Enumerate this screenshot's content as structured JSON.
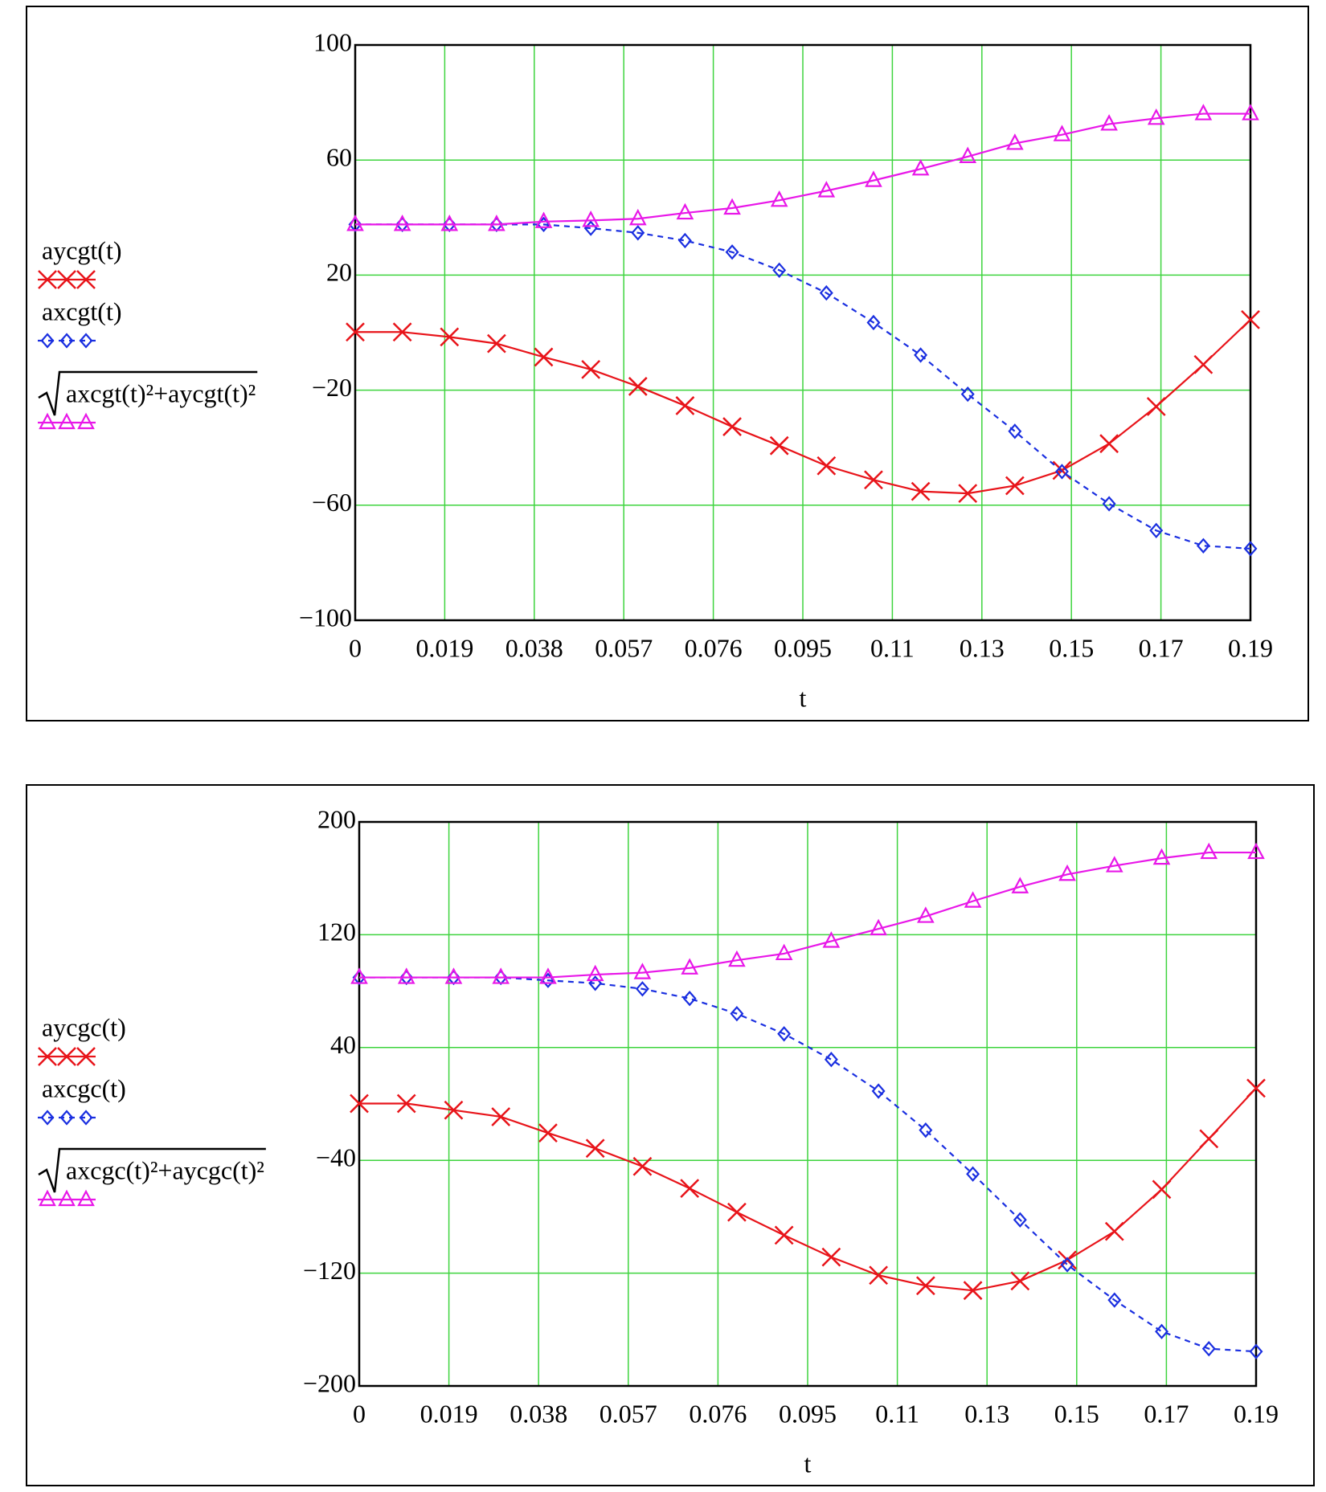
{
  "chart_data": [
    {
      "type": "line",
      "xlabel": "t",
      "x": [
        0,
        0.01,
        0.02,
        0.03,
        0.04,
        0.05,
        0.06,
        0.07,
        0.08,
        0.09,
        0.1,
        0.11,
        0.12,
        0.13,
        0.14,
        0.15,
        0.16,
        0.17,
        0.18,
        0.19
      ],
      "xlim": [
        0,
        0.19
      ],
      "xticks": [
        0,
        0.019,
        0.038,
        0.057,
        0.076,
        0.095,
        {
          "value": 0.114,
          "label": "0.11"
        },
        {
          "value": 0.133,
          "label": "0.13"
        },
        {
          "value": 0.152,
          "label": "0.15"
        },
        {
          "value": 0.171,
          "label": "0.17"
        },
        0.19
      ],
      "ylim": [
        -100,
        100
      ],
      "yticks": [
        {
          "value": -100,
          "label": "−100"
        },
        {
          "value": -60,
          "label": "−60"
        },
        {
          "value": -20,
          "label": "−20"
        },
        20,
        60,
        100
      ],
      "grid": true,
      "series": [
        {
          "name": "aycgt(t)",
          "color": "#e8141a",
          "marker": "x",
          "dash": "solid",
          "values": [
            0.2,
            0.2,
            -1.5,
            -3.8,
            -8.5,
            -12.8,
            -18.7,
            -25.4,
            -32.7,
            -39.3,
            -46.3,
            -51.2,
            -55.2,
            -55.9,
            -53.2,
            -47.9,
            -38.6,
            -25.7,
            -11.1,
            4.5
          ]
        },
        {
          "name": "axcgt(t)",
          "color": "#1a2fe0",
          "marker": "diamond",
          "dash": "dashed",
          "values": [
            37.6,
            37.6,
            37.6,
            37.6,
            37.6,
            36.3,
            34.7,
            32,
            28,
            21.7,
            13.8,
            3.5,
            -7.8,
            -21.4,
            -34.3,
            -48.3,
            -59.5,
            -68.8,
            -74.1,
            -75.1
          ]
        },
        {
          "name": "axcgt(t)²+aycgt(t)²",
          "color": "#e817e8",
          "marker": "triangle",
          "dash": "solid",
          "radical": true,
          "values": [
            37.6,
            37.6,
            37.6,
            37.6,
            38.6,
            39,
            39.6,
            41.6,
            43.3,
            46,
            49.3,
            52.9,
            56.9,
            61.2,
            65.8,
            68.8,
            72.5,
            74.5,
            76.1,
            76.1
          ]
        }
      ]
    },
    {
      "type": "line",
      "xlabel": "t",
      "x": [
        0,
        0.01,
        0.02,
        0.03,
        0.04,
        0.05,
        0.06,
        0.07,
        0.08,
        0.09,
        0.1,
        0.11,
        0.12,
        0.13,
        0.14,
        0.15,
        0.16,
        0.17,
        0.18,
        0.19
      ],
      "xlim": [
        0,
        0.19
      ],
      "xticks": [
        0,
        0.019,
        0.038,
        0.057,
        0.076,
        0.095,
        {
          "value": 0.114,
          "label": "0.11"
        },
        {
          "value": 0.133,
          "label": "0.13"
        },
        {
          "value": 0.152,
          "label": "0.15"
        },
        {
          "value": 0.171,
          "label": "0.17"
        },
        0.19
      ],
      "ylim": [
        -200,
        200
      ],
      "yticks": [
        {
          "value": -200,
          "label": "−200"
        },
        {
          "value": -120,
          "label": "−120"
        },
        {
          "value": -40,
          "label": "−40"
        },
        40,
        120,
        200
      ],
      "grid": true,
      "series": [
        {
          "name": "aycgc(t)",
          "color": "#e8141a",
          "marker": "x",
          "dash": "solid",
          "values": [
            0.3,
            0.3,
            -4.4,
            -9.1,
            -20.6,
            -31.5,
            -44.3,
            -59.9,
            -76.8,
            -93.1,
            -108.6,
            -121.5,
            -128.9,
            -132.3,
            -125.6,
            -110.7,
            -90.4,
            -60.6,
            -24.7,
            11.2
          ]
        },
        {
          "name": "axcgc(t)",
          "color": "#1a2fe0",
          "marker": "diamond",
          "dash": "dashed",
          "values": [
            89.7,
            89.7,
            89.7,
            89.7,
            87.6,
            85.6,
            81.6,
            74.8,
            64,
            49.7,
            31.5,
            9.1,
            -18.6,
            -49.7,
            -82.2,
            -114,
            -139.1,
            -161.4,
            -173.6,
            -175.6
          ]
        },
        {
          "name": "axcgc(t)²+aycgc(t)²",
          "color": "#e817e8",
          "marker": "triangle",
          "dash": "solid",
          "radical": true,
          "values": [
            89.7,
            89.7,
            89.7,
            89.7,
            89.7,
            91.7,
            93.1,
            96.4,
            101.9,
            106.6,
            115.4,
            124.2,
            133,
            143.8,
            154,
            162.8,
            168.9,
            174.3,
            178.3,
            178.3
          ]
        }
      ]
    }
  ]
}
